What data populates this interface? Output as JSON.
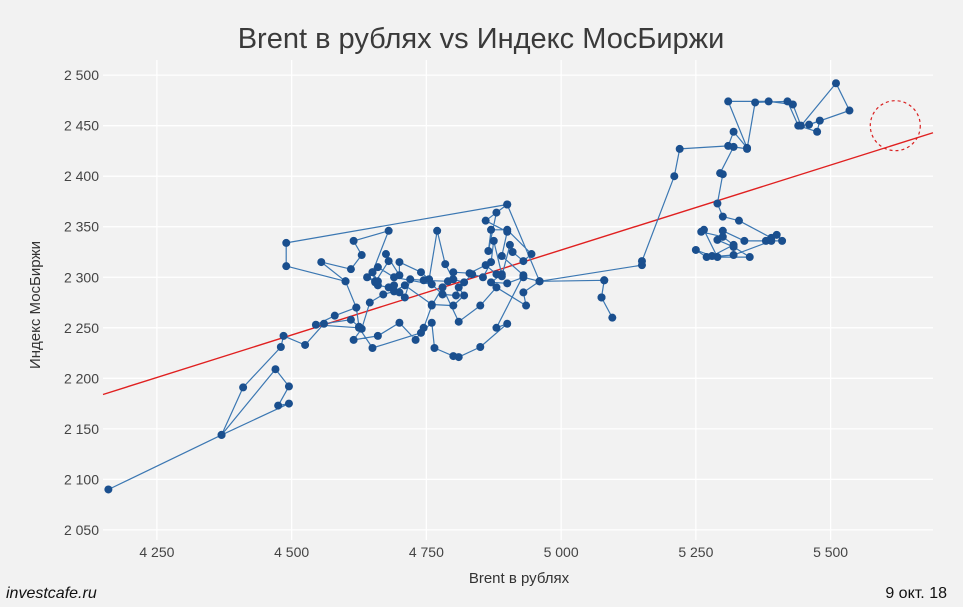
{
  "chart_data": {
    "type": "scatter",
    "title": "Brent в рублях vs Индекс МосБиржи",
    "xlabel": "Brent в рублях",
    "ylabel": "Индекс МосБиржи",
    "xlim": [
      4150,
      5690
    ],
    "ylim": [
      2040,
      2515
    ],
    "x_ticks": [
      4250,
      4500,
      4750,
      5000,
      5250,
      5500
    ],
    "x_tick_labels": [
      "4 250",
      "4 500",
      "4 750",
      "5 000",
      "5 250",
      "5 500"
    ],
    "y_ticks": [
      2050,
      2100,
      2150,
      2200,
      2250,
      2300,
      2350,
      2400,
      2450,
      2500
    ],
    "y_tick_labels": [
      "2 050",
      "2 100",
      "2 150",
      "2 200",
      "2 250",
      "2 300",
      "2 350",
      "2 400",
      "2 450",
      "2 500"
    ],
    "grid": true,
    "series": [
      {
        "connected": true,
        "points": [
          [
            4160,
            2090
          ],
          [
            4370,
            2144
          ],
          [
            4495,
            2175
          ],
          [
            4475,
            2173
          ],
          [
            4495,
            2192
          ],
          [
            4470,
            2209
          ],
          [
            4370,
            2144
          ],
          [
            4410,
            2191
          ],
          [
            4480,
            2231
          ],
          [
            4485,
            2242
          ],
          [
            4525,
            2233
          ],
          [
            4560,
            2254
          ],
          [
            4610,
            2258
          ],
          [
            4625,
            2251
          ],
          [
            4620,
            2270
          ],
          [
            4600,
            2296
          ],
          [
            4555,
            2315
          ],
          [
            4610,
            2308
          ],
          [
            4630,
            2322
          ],
          [
            4615,
            2336
          ],
          [
            4680,
            2346
          ],
          [
            4650,
            2305
          ],
          [
            4660,
            2296
          ],
          [
            4640,
            2300
          ],
          [
            4655,
            2295
          ],
          [
            4680,
            2316
          ],
          [
            4675,
            2323
          ],
          [
            4700,
            2302
          ],
          [
            4700,
            2315
          ],
          [
            4740,
            2305
          ],
          [
            4755,
            2298
          ],
          [
            4770,
            2346
          ],
          [
            4785,
            2313
          ],
          [
            4800,
            2298
          ],
          [
            4820,
            2295
          ],
          [
            4835,
            2303
          ],
          [
            4855,
            2300
          ],
          [
            4870,
            2315
          ],
          [
            4875,
            2336
          ],
          [
            4890,
            2303
          ],
          [
            4870,
            2295
          ],
          [
            4900,
            2294
          ],
          [
            4930,
            2300
          ],
          [
            4960,
            2296
          ],
          [
            5080,
            2297
          ],
          [
            5075,
            2280
          ],
          [
            5095,
            2260
          ],
          [
            5075,
            2280
          ],
          [
            5080,
            2297
          ],
          [
            4960,
            2296
          ],
          [
            4930,
            2285
          ],
          [
            4935,
            2272
          ],
          [
            4880,
            2290
          ],
          [
            4850,
            2272
          ],
          [
            4810,
            2256
          ],
          [
            4780,
            2290
          ],
          [
            4760,
            2272
          ],
          [
            4745,
            2250
          ],
          [
            4730,
            2238
          ],
          [
            4700,
            2255
          ],
          [
            4660,
            2242
          ],
          [
            4615,
            2238
          ],
          [
            4630,
            2249
          ],
          [
            4645,
            2275
          ],
          [
            4670,
            2283
          ],
          [
            4690,
            2286
          ],
          [
            4710,
            2292
          ],
          [
            4760,
            2273
          ],
          [
            4800,
            2272
          ],
          [
            4820,
            2282
          ],
          [
            4810,
            2290
          ],
          [
            4805,
            2282
          ],
          [
            4780,
            2283
          ],
          [
            4760,
            2293
          ],
          [
            4690,
            2300
          ],
          [
            4660,
            2310
          ],
          [
            4650,
            2305
          ],
          [
            4655,
            2296
          ],
          [
            4660,
            2292
          ],
          [
            4680,
            2290
          ],
          [
            4690,
            2292
          ],
          [
            4700,
            2285
          ],
          [
            4710,
            2280
          ],
          [
            4720,
            2298
          ],
          [
            4745,
            2297
          ],
          [
            4790,
            2296
          ],
          [
            4800,
            2305
          ],
          [
            4830,
            2304
          ],
          [
            4860,
            2312
          ],
          [
            4880,
            2303
          ],
          [
            4890,
            2301
          ],
          [
            4905,
            2332
          ],
          [
            4910,
            2325
          ],
          [
            4930,
            2316
          ],
          [
            4945,
            2323
          ],
          [
            4900,
            2347
          ],
          [
            4870,
            2347
          ],
          [
            4865,
            2326
          ],
          [
            4880,
            2364
          ],
          [
            4900,
            2372
          ],
          [
            4490,
            2334
          ],
          [
            4490,
            2311
          ],
          [
            4600,
            2296
          ],
          [
            4620,
            2270
          ],
          [
            4580,
            2262
          ],
          [
            4545,
            2253
          ],
          [
            4625,
            2250
          ],
          [
            4650,
            2230
          ],
          [
            4740,
            2245
          ],
          [
            4760,
            2255
          ],
          [
            4765,
            2230
          ],
          [
            4800,
            2222
          ],
          [
            4810,
            2221
          ],
          [
            4850,
            2231
          ],
          [
            4900,
            2254
          ],
          [
            4880,
            2250
          ],
          [
            4930,
            2302
          ],
          [
            4890,
            2321
          ],
          [
            4900,
            2345
          ],
          [
            4860,
            2356
          ],
          [
            4900,
            2372
          ],
          [
            4960,
            2296
          ],
          [
            5150,
            2312
          ],
          [
            5150,
            2316
          ],
          [
            5210,
            2400
          ],
          [
            5220,
            2427
          ],
          [
            5310,
            2430
          ],
          [
            5320,
            2444
          ],
          [
            5345,
            2428
          ],
          [
            5310,
            2474
          ],
          [
            5385,
            2474
          ],
          [
            5430,
            2471
          ],
          [
            5445,
            2450
          ],
          [
            5510,
            2492
          ],
          [
            5535,
            2465
          ],
          [
            5460,
            2451
          ],
          [
            5480,
            2455
          ],
          [
            5475,
            2444
          ],
          [
            5440,
            2450
          ],
          [
            5420,
            2474
          ],
          [
            5360,
            2473
          ],
          [
            5345,
            2427
          ],
          [
            5320,
            2429
          ],
          [
            5295,
            2403
          ],
          [
            5300,
            2402
          ],
          [
            5290,
            2373
          ],
          [
            5300,
            2360
          ],
          [
            5330,
            2356
          ],
          [
            5390,
            2339
          ],
          [
            5380,
            2336
          ],
          [
            5340,
            2336
          ],
          [
            5300,
            2346
          ],
          [
            5290,
            2337
          ],
          [
            5320,
            2330
          ],
          [
            5350,
            2320
          ],
          [
            5290,
            2320
          ],
          [
            5265,
            2347
          ],
          [
            5260,
            2345
          ],
          [
            5300,
            2340
          ],
          [
            5320,
            2332
          ],
          [
            5280,
            2321
          ],
          [
            5250,
            2327
          ],
          [
            5270,
            2320
          ],
          [
            5320,
            2322
          ],
          [
            5390,
            2336
          ],
          [
            5410,
            2336
          ],
          [
            5400,
            2342
          ]
        ]
      }
    ],
    "trendline": {
      "from": [
        4150,
        2184
      ],
      "to": [
        5690,
        2443
      ]
    },
    "highlight_circle": {
      "x": 5620,
      "y": 2450
    },
    "colors": {
      "points": "#1a4f8e",
      "line": "#3b77b2",
      "trend": "#e02020",
      "grid": "#ffffff",
      "highlight": "#d92020"
    }
  },
  "footer": {
    "source": "investcafe.ru",
    "date": "9 окт. 18"
  }
}
